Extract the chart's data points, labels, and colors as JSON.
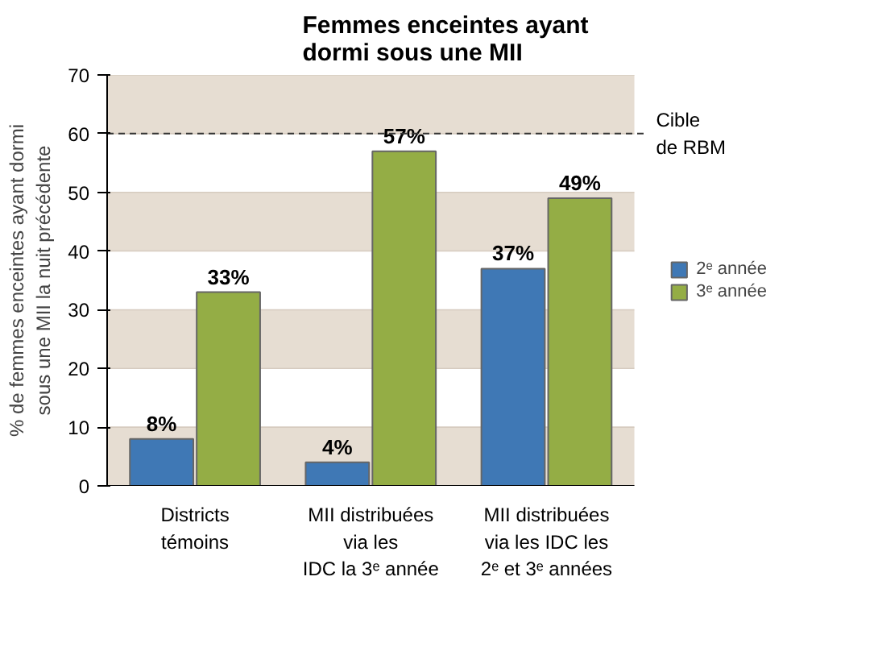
{
  "chart_data": {
    "type": "bar",
    "title": "Femmes enceintes ayant dormi sous une MII",
    "ylabel": "% de femmes enceintes ayant dormi sous une MII la nuit précédente",
    "categories": [
      "Districts témoins",
      "MII distribuées via les IDC la 3ᵉ année",
      "MII distribuées via les IDC les 2ᵉ et 3ᵉ années"
    ],
    "series": [
      {
        "name": "2ᵉ année",
        "color": "#3f78b5",
        "values": [
          8,
          4,
          37
        ],
        "value_labels": [
          "8%",
          "4%",
          "37%"
        ]
      },
      {
        "name": "3ᵉ année",
        "color": "#94ad45",
        "values": [
          33,
          57,
          49
        ],
        "value_labels": [
          "33%",
          "57%",
          "49%"
        ]
      }
    ],
    "ylim": [
      0,
      70
    ],
    "yticks": [
      0,
      10,
      20,
      30,
      40,
      50,
      60,
      70
    ],
    "grid": "y",
    "legend": "right",
    "ref_lines": [
      {
        "axis": "y",
        "value": 60,
        "label": "Cible de RBM",
        "line_style": "dashed",
        "color": "#333333"
      }
    ]
  }
}
